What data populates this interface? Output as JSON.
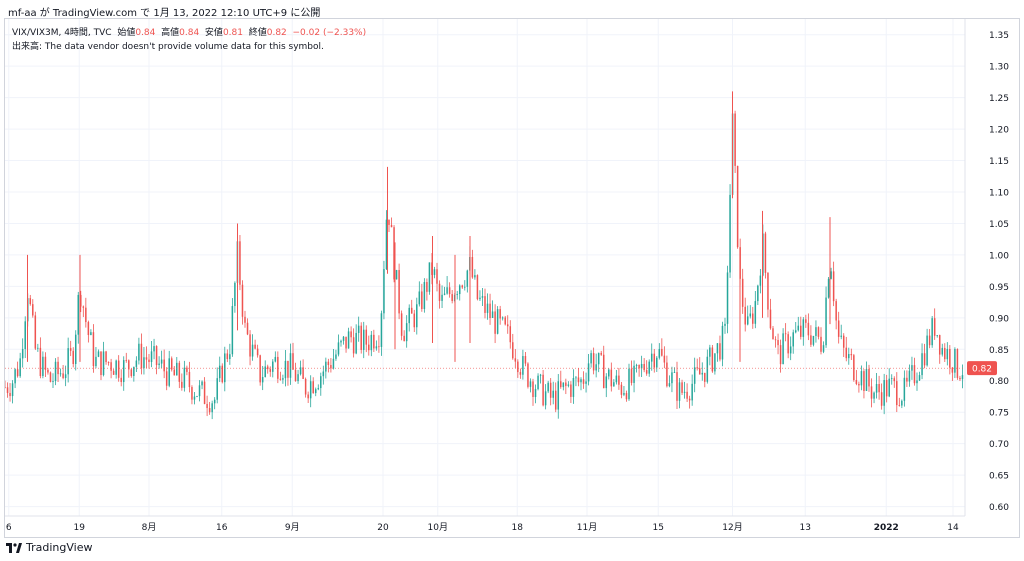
{
  "header": {
    "author": "mf-aa",
    "published_text": "mf-aa が TradingView.com で 1月 13, 2022 12:10 UTC+9 に公開"
  },
  "legend": {
    "symbol": "VIX/VIX3M, 4時間, TVC",
    "open_label": "始値",
    "open": "0.84",
    "high_label": "高値",
    "high": "0.84",
    "low_label": "安値",
    "low": "0.81",
    "close_label": "終値",
    "close": "0.82",
    "change": "−0.02 (−2.33%)",
    "volume_note": "出来高: The data vendor doesn't provide volume data for this symbol."
  },
  "footer": {
    "brand": "TradingView"
  },
  "colors": {
    "up": "#26a69a",
    "down": "#ef5350",
    "grid": "#f0f3fa",
    "axis_text": "#131722"
  },
  "chart_data": {
    "type": "candlestick",
    "title": "VIX/VIX3M, 4時間, TVC",
    "y_ticks": [
      "1.35",
      "1.30",
      "1.25",
      "1.20",
      "1.15",
      "1.10",
      "1.05",
      "1.00",
      "0.95",
      "0.90",
      "0.85",
      "0.80",
      "0.75",
      "0.70",
      "0.65",
      "0.60"
    ],
    "ylim": [
      0.585,
      1.375
    ],
    "x_ticks": [
      "6",
      "19",
      "8月",
      "16",
      "9月",
      "20",
      "10月",
      "18",
      "11月",
      "15",
      "12月",
      "13",
      "2022",
      "14"
    ],
    "x_tick_positions": [
      0.5,
      9.9,
      19.2,
      28.9,
      38.3,
      50.4,
      57.7,
      68.3,
      77.6,
      87.1,
      97.0,
      106.7,
      117.5,
      126.4
    ],
    "x_range": [
      0,
      128
    ],
    "last_price": 0.82,
    "last_price_label": "0.82",
    "key_points": [
      [
        0,
        0.79
      ],
      [
        1,
        0.8
      ],
      [
        2,
        0.83
      ],
      [
        3,
        0.95
      ],
      [
        4,
        0.85
      ],
      [
        5,
        0.82
      ],
      [
        6,
        0.8
      ],
      [
        7,
        0.81
      ],
      [
        8,
        0.82
      ],
      [
        9,
        0.84
      ],
      [
        10,
        0.95
      ],
      [
        11,
        0.88
      ],
      [
        12,
        0.83
      ],
      [
        14,
        0.83
      ],
      [
        16,
        0.82
      ],
      [
        18,
        0.84
      ],
      [
        20,
        0.83
      ],
      [
        22,
        0.81
      ],
      [
        24,
        0.8
      ],
      [
        26,
        0.78
      ],
      [
        28,
        0.77
      ],
      [
        29,
        0.82
      ],
      [
        30,
        0.86
      ],
      [
        31,
        1.0
      ],
      [
        32,
        0.88
      ],
      [
        34,
        0.81
      ],
      [
        36,
        0.83
      ],
      [
        38,
        0.82
      ],
      [
        40,
        0.79
      ],
      [
        42,
        0.81
      ],
      [
        44,
        0.84
      ],
      [
        46,
        0.87
      ],
      [
        48,
        0.86
      ],
      [
        50,
        0.88
      ],
      [
        51,
        1.09
      ],
      [
        52,
        0.97
      ],
      [
        53,
        0.88
      ],
      [
        55,
        0.91
      ],
      [
        57,
        0.98
      ],
      [
        58,
        0.92
      ],
      [
        60,
        0.95
      ],
      [
        62,
        0.98
      ],
      [
        63,
        0.93
      ],
      [
        65,
        0.9
      ],
      [
        67,
        0.87
      ],
      [
        68,
        0.85
      ],
      [
        69,
        0.82
      ],
      [
        71,
        0.79
      ],
      [
        73,
        0.77
      ],
      [
        75,
        0.79
      ],
      [
        77,
        0.8
      ],
      [
        78,
        0.84
      ],
      [
        80,
        0.81
      ],
      [
        82,
        0.79
      ],
      [
        84,
        0.8
      ],
      [
        86,
        0.84
      ],
      [
        87,
        0.85
      ],
      [
        88,
        0.82
      ],
      [
        90,
        0.78
      ],
      [
        92,
        0.8
      ],
      [
        94,
        0.83
      ],
      [
        96,
        0.87
      ],
      [
        97,
        1.21
      ],
      [
        98,
        0.95
      ],
      [
        99,
        0.88
      ],
      [
        100,
        0.92
      ],
      [
        101,
        1.02
      ],
      [
        102,
        0.9
      ],
      [
        103,
        0.84
      ],
      [
        105,
        0.87
      ],
      [
        107,
        0.88
      ],
      [
        109,
        0.86
      ],
      [
        110,
        1.01
      ],
      [
        111,
        0.87
      ],
      [
        112,
        0.84
      ],
      [
        114,
        0.81
      ],
      [
        116,
        0.78
      ],
      [
        118,
        0.79
      ],
      [
        120,
        0.78
      ],
      [
        122,
        0.83
      ],
      [
        124,
        0.89
      ],
      [
        125,
        0.85
      ],
      [
        126,
        0.84
      ],
      [
        127,
        0.82
      ]
    ]
  }
}
